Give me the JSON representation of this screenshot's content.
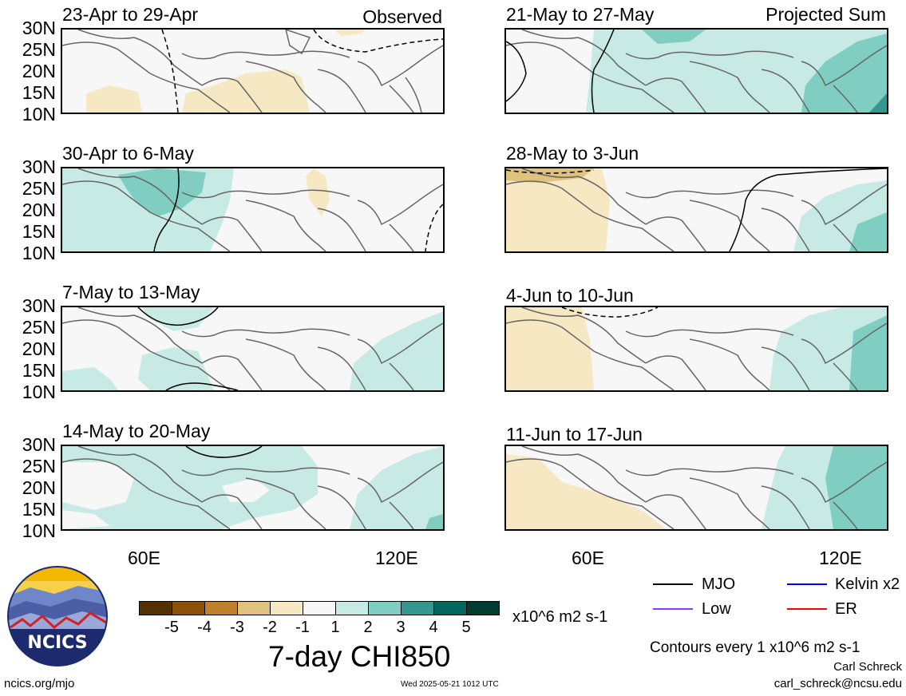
{
  "panels": [
    {
      "title": "23-Apr to 29-Apr",
      "note": "Observed"
    },
    {
      "title": "30-Apr to 6-May",
      "note": ""
    },
    {
      "title": "7-May to 13-May",
      "note": ""
    },
    {
      "title": "14-May to 20-May",
      "note": ""
    },
    {
      "title": "21-May to 27-May",
      "note": "Projected Sum"
    },
    {
      "title": "28-May to 3-Jun",
      "note": ""
    },
    {
      "title": "4-Jun to 10-Jun",
      "note": ""
    },
    {
      "title": "11-Jun to 17-Jun",
      "note": ""
    }
  ],
  "lat_labels": [
    "30N",
    "25N",
    "20N",
    "15N",
    "10N"
  ],
  "lon_labels": [
    "60E",
    "120E"
  ],
  "colorbar": {
    "colors": [
      "#543005",
      "#8c510a",
      "#bf812d",
      "#dfc27d",
      "#f6e8c3",
      "#f7f7f7",
      "#c7eae5",
      "#80cdc1",
      "#35978f",
      "#01665e",
      "#003c30"
    ],
    "labels": [
      "-5",
      "-4",
      "-3",
      "-2",
      "-1",
      "1",
      "2",
      "3",
      "4",
      "5"
    ],
    "units": "x10^6 m2 s-1"
  },
  "main_title": "7-day CHI850",
  "legend": [
    {
      "name": "MJO",
      "color": "#000000"
    },
    {
      "name": "Kelvin x2",
      "color": "#0000ff"
    },
    {
      "name": "Low",
      "color": "#9933ff"
    },
    {
      "name": "ER",
      "color": "#ff0000"
    }
  ],
  "contour_note": "Contours every 1 x10^6 m2 s-1",
  "author": "Carl Schreck",
  "email": "carl_schreck@ncsu.edu",
  "website": "ncics.org/mjo",
  "timestamp": "Wed 2025-05-21 1012 UTC",
  "logo_text": "NCICS"
}
